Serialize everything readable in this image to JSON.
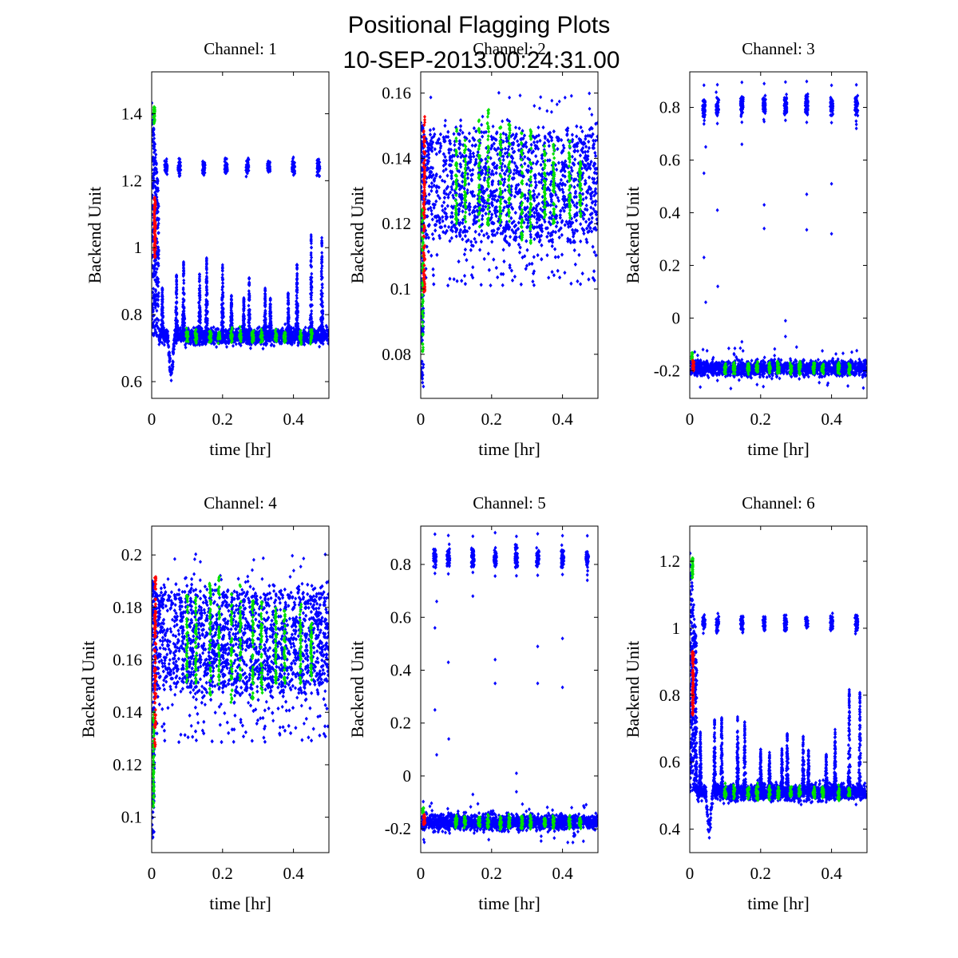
{
  "figure": {
    "title_line1": "Positional Flagging Plots",
    "title_line2": "10-SEP-2013.00:24:31.00"
  },
  "colors": {
    "unflagged": "#0000ff",
    "flag_green": "#00e000",
    "flag_red": "#ff0000"
  },
  "chart_data": [
    {
      "type": "scatter",
      "title": "Channel: 1",
      "xlabel": "time [hr]",
      "ylabel": "Backend Unit",
      "xlim": [
        0,
        0.5
      ],
      "ylim": [
        0.55,
        1.525
      ],
      "xticks": [
        0,
        0.2,
        0.4
      ],
      "xtick_labels": [
        "0",
        "0.2",
        "0.4"
      ],
      "yticks": [
        0.6,
        0.8,
        1.0,
        1.2,
        1.4
      ],
      "ytick_labels": [
        "0.6",
        "0.8",
        "1",
        "1.2",
        "1.4"
      ],
      "grid": false,
      "profile": "drift",
      "baseline": 0.735,
      "noise": 0.012,
      "start_peak": 1.45,
      "dip_min": 0.58,
      "upper_level": 1.24,
      "spike_peaks": [
        0.88,
        0.92,
        0.96,
        0.93,
        0.97,
        0.95,
        0.86,
        0.85,
        0.91,
        0.88,
        0.85,
        0.87,
        0.95,
        1.05,
        1.03
      ],
      "green_start_range": [
        1.37,
        1.42
      ],
      "red_start_range": [
        0.97,
        1.15
      ],
      "series": [
        {
          "name": "unflagged",
          "color": "#0000ff"
        },
        {
          "name": "flagged-green",
          "color": "#00e000"
        },
        {
          "name": "flagged-red",
          "color": "#ff0000"
        }
      ]
    },
    {
      "type": "scatter",
      "title": "Channel: 2",
      "xlabel": "time [hr]",
      "ylabel": "Backend Unit",
      "xlim": [
        0,
        0.5
      ],
      "ylim": [
        0.0665,
        0.1665
      ],
      "xticks": [
        0,
        0.2,
        0.4
      ],
      "xtick_labels": [
        "0",
        "0.2",
        "0.4"
      ],
      "yticks": [
        0.08,
        0.1,
        0.12,
        0.14,
        0.16
      ],
      "ytick_labels": [
        "0.08",
        "0.1",
        "0.12",
        "0.14",
        "0.16"
      ],
      "grid": false,
      "profile": "band",
      "band_center": 0.132,
      "band_halfwidth": 0.019,
      "low_outlier": 0.097,
      "high_outlier": 0.162,
      "start_low": 0.07,
      "green_columns": [
        [
          0.12,
          0.149
        ],
        [
          0.12,
          0.146
        ],
        [
          0.119,
          0.152
        ],
        [
          0.119,
          0.155
        ],
        [
          0.12,
          0.15
        ],
        [
          0.12,
          0.151
        ],
        [
          0.115,
          0.148
        ],
        [
          0.114,
          0.149
        ],
        [
          0.12,
          0.144
        ],
        [
          0.12,
          0.145
        ],
        [
          0.121,
          0.146
        ],
        [
          0.122,
          0.139
        ]
      ],
      "red_start_range": [
        0.099,
        0.153
      ],
      "green_start_range": [
        0.08,
        0.125
      ],
      "series": [
        {
          "name": "unflagged",
          "color": "#0000ff"
        },
        {
          "name": "flagged-green",
          "color": "#00e000"
        },
        {
          "name": "flagged-red",
          "color": "#ff0000"
        }
      ]
    },
    {
      "type": "scatter",
      "title": "Channel: 3",
      "xlabel": "time [hr]",
      "ylabel": "Backend Unit",
      "xlim": [
        0,
        0.5
      ],
      "ylim": [
        -0.305,
        0.935
      ],
      "xticks": [
        0,
        0.2,
        0.4
      ],
      "xtick_labels": [
        "0",
        "0.2",
        "0.4"
      ],
      "yticks": [
        -0.2,
        0,
        0.2,
        0.4,
        0.6,
        0.8
      ],
      "ytick_labels": [
        "-0.2",
        "0",
        "0.2",
        "0.4",
        "0.6",
        "0.8"
      ],
      "grid": false,
      "profile": "bimodal",
      "baseline": -0.19,
      "noise": 0.015,
      "upper_level": 0.805,
      "outliers": [
        [
          0.04,
          0.55
        ],
        [
          0.04,
          0.23
        ],
        [
          0.045,
          0.06
        ],
        [
          0.045,
          0.65
        ],
        [
          0.078,
          0.41
        ],
        [
          0.079,
          0.12
        ],
        [
          0.147,
          0.66
        ],
        [
          0.147,
          -0.09
        ],
        [
          0.21,
          0.43
        ],
        [
          0.21,
          0.34
        ],
        [
          0.27,
          -0.01
        ],
        [
          0.27,
          -0.07
        ],
        [
          0.33,
          0.47
        ],
        [
          0.33,
          0.335
        ],
        [
          0.4,
          0.51
        ],
        [
          0.4,
          0.32
        ],
        [
          0.47,
          0.72
        ]
      ],
      "series": [
        {
          "name": "unflagged",
          "color": "#0000ff"
        },
        {
          "name": "flagged-green",
          "color": "#00e000"
        },
        {
          "name": "flagged-red",
          "color": "#ff0000"
        }
      ]
    },
    {
      "type": "scatter",
      "title": "Channel: 4",
      "xlabel": "time [hr]",
      "ylabel": "Backend Unit",
      "xlim": [
        0,
        0.5
      ],
      "ylim": [
        0.0865,
        0.211
      ],
      "xticks": [
        0,
        0.2,
        0.4
      ],
      "xtick_labels": [
        "0",
        "0.2",
        "0.4"
      ],
      "yticks": [
        0.1,
        0.12,
        0.14,
        0.16,
        0.18,
        0.2
      ],
      "ytick_labels": [
        "0.1",
        "0.12",
        "0.14",
        "0.16",
        "0.18",
        "0.2"
      ],
      "grid": false,
      "profile": "band",
      "band_center": 0.168,
      "band_halfwidth": 0.022,
      "low_outlier": 0.123,
      "high_outlier": 0.201,
      "start_low": 0.092,
      "green_columns": [
        [
          0.151,
          0.185
        ],
        [
          0.151,
          0.184
        ],
        [
          0.146,
          0.19
        ],
        [
          0.15,
          0.193
        ],
        [
          0.143,
          0.188
        ],
        [
          0.152,
          0.19
        ],
        [
          0.144,
          0.184
        ],
        [
          0.146,
          0.182
        ],
        [
          0.149,
          0.18
        ],
        [
          0.151,
          0.179
        ],
        [
          0.151,
          0.183
        ],
        [
          0.152,
          0.174
        ]
      ],
      "red_start_range": [
        0.126,
        0.193
      ],
      "green_start_range": [
        0.103,
        0.14
      ],
      "series": [
        {
          "name": "unflagged",
          "color": "#0000ff"
        },
        {
          "name": "flagged-green",
          "color": "#00e000"
        },
        {
          "name": "flagged-red",
          "color": "#ff0000"
        }
      ]
    },
    {
      "type": "scatter",
      "title": "Channel: 5",
      "xlabel": "time [hr]",
      "ylabel": "Backend Unit",
      "xlim": [
        0,
        0.5
      ],
      "ylim": [
        -0.29,
        0.945
      ],
      "xticks": [
        0,
        0.2,
        0.4
      ],
      "xtick_labels": [
        "0",
        "0.2",
        "0.4"
      ],
      "yticks": [
        -0.2,
        0,
        0.2,
        0.4,
        0.6,
        0.8
      ],
      "ytick_labels": [
        "-0.2",
        "0",
        "0.2",
        "0.4",
        "0.6",
        "0.8"
      ],
      "grid": false,
      "profile": "bimodal",
      "baseline": -0.175,
      "noise": 0.015,
      "upper_level": 0.825,
      "outliers": [
        [
          0.04,
          0.56
        ],
        [
          0.04,
          0.25
        ],
        [
          0.045,
          0.08
        ],
        [
          0.045,
          0.66
        ],
        [
          0.078,
          0.43
        ],
        [
          0.079,
          0.14
        ],
        [
          0.147,
          0.68
        ],
        [
          0.147,
          -0.07
        ],
        [
          0.21,
          0.44
        ],
        [
          0.21,
          0.35
        ],
        [
          0.27,
          0.01
        ],
        [
          0.27,
          -0.06
        ],
        [
          0.33,
          0.49
        ],
        [
          0.33,
          0.35
        ],
        [
          0.4,
          0.52
        ],
        [
          0.4,
          0.335
        ],
        [
          0.47,
          0.74
        ]
      ],
      "series": [
        {
          "name": "unflagged",
          "color": "#0000ff"
        },
        {
          "name": "flagged-green",
          "color": "#00e000"
        },
        {
          "name": "flagged-red",
          "color": "#ff0000"
        }
      ]
    },
    {
      "type": "scatter",
      "title": "Channel: 6",
      "xlabel": "time [hr]",
      "ylabel": "Backend Unit",
      "xlim": [
        0,
        0.5
      ],
      "ylim": [
        0.33,
        1.305
      ],
      "xticks": [
        0,
        0.2,
        0.4
      ],
      "xtick_labels": [
        "0",
        "0.2",
        "0.4"
      ],
      "yticks": [
        0.4,
        0.6,
        0.8,
        1.0,
        1.2
      ],
      "ytick_labels": [
        "0.4",
        "0.6",
        "0.8",
        "1",
        "1.2"
      ],
      "grid": false,
      "profile": "drift",
      "baseline": 0.51,
      "noise": 0.012,
      "start_peak": 1.24,
      "dip_min": 0.35,
      "upper_level": 1.015,
      "spike_peaks": [
        0.69,
        0.73,
        0.74,
        0.75,
        0.72,
        0.64,
        0.63,
        0.64,
        0.69,
        0.68,
        0.64,
        0.63,
        0.7,
        0.83,
        0.81
      ],
      "green_start_range": [
        1.15,
        1.21
      ],
      "red_start_range": [
        0.74,
        0.93
      ],
      "series": [
        {
          "name": "unflagged",
          "color": "#0000ff"
        },
        {
          "name": "flagged-green",
          "color": "#00e000"
        },
        {
          "name": "flagged-red",
          "color": "#ff0000"
        }
      ]
    }
  ]
}
